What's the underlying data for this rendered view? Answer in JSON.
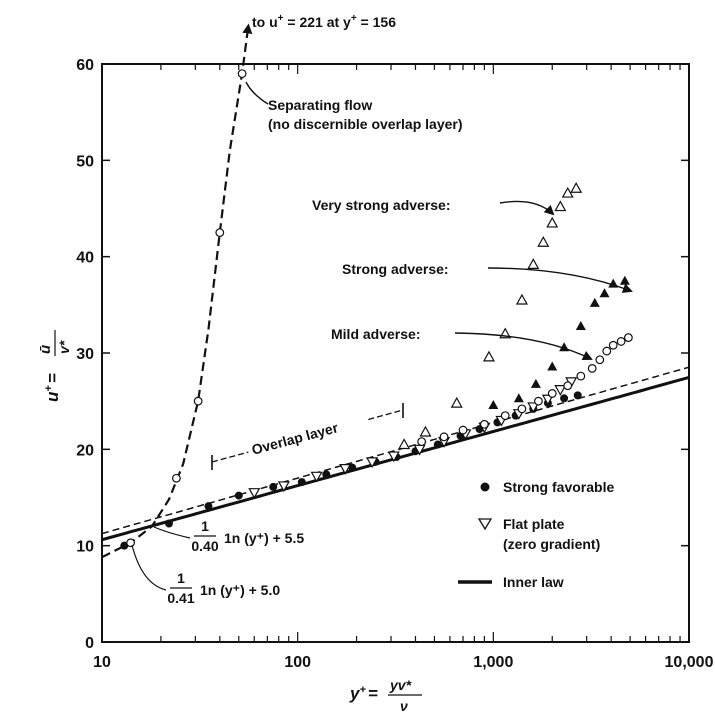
{
  "chart_data": {
    "type": "scatter",
    "xscale": "log",
    "xlim": [
      10,
      10000
    ],
    "ylim": [
      0,
      60
    ],
    "x_ticks": [
      "10",
      "100",
      "1,000",
      "10,000"
    ],
    "y_ticks": [
      "0",
      "10",
      "20",
      "30",
      "40",
      "50",
      "60"
    ],
    "xlabel": {
      "lhs": "y",
      "sup": "+",
      "eq": "=",
      "num": "yv*",
      "den": "ν"
    },
    "ylabel": {
      "lhs": "u",
      "sup": "+",
      "eq": "=",
      "num": "ū",
      "den": "v*"
    },
    "top_note": {
      "a": "to u",
      "sup": "+",
      "b": " = 221 at y",
      "sup2": "+",
      "c": " = 156"
    },
    "annotations": {
      "separating": [
        "Separating flow",
        "(no discernible overlap layer)"
      ],
      "very_strong": "Very strong adverse:",
      "strong_adv": "Strong adverse:",
      "mild_adv": "Mild adverse:",
      "overlap": "Overlap layer",
      "eq55": {
        "num": "1",
        "den": "0.40",
        "rest": "1n (y⁺) + 5.5"
      },
      "eq50": {
        "num": "1",
        "den": "0.41",
        "rest": "1n (y⁺) + 5.0"
      }
    },
    "legend": {
      "strong_favorable": "Strong favorable",
      "flat_plate": [
        "Flat plate",
        "(zero gradient)"
      ],
      "inner_law": "Inner law"
    },
    "series": [
      {
        "name": "Strong favorable",
        "marker": "filled-circle",
        "points": [
          [
            13,
            10
          ],
          [
            22,
            12.3
          ],
          [
            35,
            14.1
          ],
          [
            50,
            15.2
          ],
          [
            75,
            16.1
          ],
          [
            105,
            16.6
          ],
          [
            140,
            17.4
          ],
          [
            190,
            18.1
          ],
          [
            250,
            18.7
          ],
          [
            320,
            19.2
          ],
          [
            400,
            19.8
          ],
          [
            520,
            20.5
          ],
          [
            680,
            21.4
          ],
          [
            850,
            22.1
          ],
          [
            1050,
            22.8
          ],
          [
            1300,
            23.5
          ],
          [
            1600,
            24.2
          ],
          [
            1900,
            24.8
          ],
          [
            2300,
            25.3
          ],
          [
            2700,
            25.6
          ]
        ]
      },
      {
        "name": "Flat plate",
        "marker": "open-down-triangle",
        "points": [
          [
            60,
            15.5
          ],
          [
            85,
            16.2
          ],
          [
            125,
            17.2
          ],
          [
            175,
            18
          ],
          [
            240,
            18.7
          ],
          [
            310,
            19.3
          ],
          [
            420,
            20
          ],
          [
            560,
            20.8
          ],
          [
            720,
            21.6
          ],
          [
            900,
            22.3
          ],
          [
            1100,
            23
          ],
          [
            1350,
            23.7
          ],
          [
            1600,
            24.4
          ],
          [
            1900,
            25.2
          ],
          [
            2200,
            26.2
          ],
          [
            2500,
            27
          ]
        ]
      },
      {
        "name": "Mild adverse",
        "marker": "open-circle",
        "points": [
          [
            430,
            20.8
          ],
          [
            560,
            21.3
          ],
          [
            700,
            22
          ],
          [
            900,
            22.6
          ],
          [
            1150,
            23.5
          ],
          [
            1400,
            24.2
          ],
          [
            1700,
            25
          ],
          [
            2000,
            25.8
          ],
          [
            2400,
            26.6
          ],
          [
            2800,
            27.6
          ],
          [
            3200,
            28.4
          ],
          [
            3500,
            29.3
          ],
          [
            3800,
            30.2
          ],
          [
            4100,
            30.8
          ],
          [
            4500,
            31.2
          ],
          [
            4900,
            31.6
          ]
        ]
      },
      {
        "name": "Strong adverse",
        "marker": "filled-up-triangle",
        "points": [
          [
            1000,
            24.6
          ],
          [
            1350,
            25.3
          ],
          [
            1650,
            26.8
          ],
          [
            2000,
            28.6
          ],
          [
            2300,
            30.6
          ],
          [
            2800,
            32.8
          ],
          [
            3300,
            35.2
          ],
          [
            3700,
            36.2
          ],
          [
            4100,
            37.2
          ],
          [
            4700,
            37.5
          ]
        ]
      },
      {
        "name": "Very strong adverse",
        "marker": "open-up-triangle",
        "points": [
          [
            350,
            20.5
          ],
          [
            450,
            21.8
          ],
          [
            650,
            24.8
          ],
          [
            950,
            29.6
          ],
          [
            1150,
            32
          ],
          [
            1400,
            35.5
          ],
          [
            1600,
            39.2
          ],
          [
            1800,
            41.5
          ],
          [
            2000,
            43.5
          ],
          [
            2200,
            45.2
          ],
          [
            2400,
            46.6
          ],
          [
            2650,
            47.1
          ]
        ]
      },
      {
        "name": "Separating flow",
        "marker": "open-circle",
        "points": [
          [
            14,
            10.3
          ],
          [
            24,
            17
          ],
          [
            31,
            25
          ],
          [
            40,
            42.5
          ],
          [
            52,
            59
          ]
        ]
      }
    ],
    "lines": [
      {
        "name": "Inner law",
        "style": "solid",
        "kappa": 0.41,
        "B": 5.0
      },
      {
        "name": "1/0.40 ln(y+) + 5.5",
        "style": "dashed",
        "kappa": 0.4,
        "B": 5.5
      },
      {
        "name": "Separating flow",
        "style": "dashed-curve",
        "points": [
          [
            10,
            8.8
          ],
          [
            14,
            10.3
          ],
          [
            18,
            12
          ],
          [
            22,
            14.8
          ],
          [
            26,
            18.5
          ],
          [
            31,
            25
          ],
          [
            35,
            32.5
          ],
          [
            40,
            42.5
          ],
          [
            45,
            51
          ],
          [
            52,
            59
          ],
          [
            56,
            64
          ]
        ]
      }
    ]
  }
}
